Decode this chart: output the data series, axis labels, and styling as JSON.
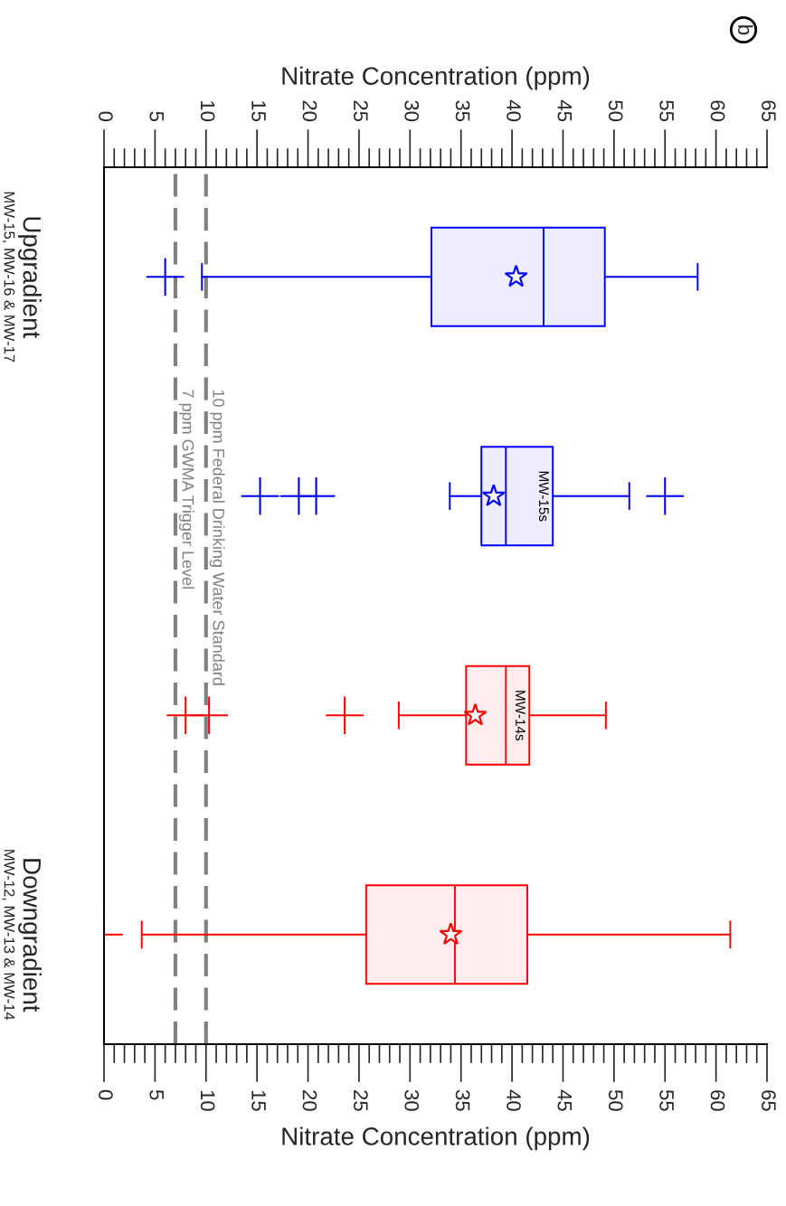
{
  "chart_data": {
    "type": "box",
    "orientation": "horizontal",
    "categories": [
      "Upgradient\nMW-15, MW-16 & MW-17",
      null,
      null,
      "Downgradient\nMW-12, MW-13 & MW-14"
    ],
    "series": [
      {
        "color": "#0000ff",
        "boxes": [
          {
            "low": 9.6,
            "q1": 32.1,
            "median": 43.1,
            "q3": 49.1,
            "high": 58.2,
            "mean": 40.4,
            "outliers": [
              6.0
            ]
          },
          {
            "low": 33.9,
            "q1": 37.0,
            "median": 39.4,
            "q3": 44.0,
            "high": 51.5,
            "mean": 38.2,
            "outliers": [
              15.3,
              19.1,
              20.8,
              55.0
            ]
          },
          null,
          null
        ]
      },
      {
        "color": "#ff0000",
        "boxes": [
          null,
          null,
          {
            "low": 28.9,
            "q1": 35.5,
            "median": 39.4,
            "q3": 41.7,
            "high": 49.2,
            "mean": 36.4,
            "outliers": [
              8.0,
              10.3,
              23.6
            ]
          },
          {
            "low": 3.7,
            "q1": 25.7,
            "median": 34.4,
            "q3": 41.5,
            "high": 61.4,
            "mean": 34.0,
            "outliers": [
              0.0
            ]
          }
        ]
      }
    ],
    "xlabel": "Nitrate Concentration (ppm)",
    "x2label": "Nitrate Concentration (ppm)",
    "xlim": [
      0,
      65
    ],
    "xticks": [
      0,
      5,
      10,
      15,
      20,
      25,
      30,
      35,
      40,
      45,
      50,
      55,
      60,
      65
    ],
    "x2lim": [
      0,
      65
    ],
    "x2ticks": [
      0,
      5,
      10,
      15,
      20,
      25,
      30,
      35,
      40,
      45,
      50,
      55,
      60,
      65
    ],
    "ref_lines": [
      {
        "axis": "x",
        "value": 10,
        "label": "10 ppm Federal Drinking Water Standard",
        "color": "#808080",
        "line_style": "dashed"
      },
      {
        "axis": "x",
        "value": 7,
        "label": "7 ppm GWMA Trigger Level",
        "color": "#808080",
        "line_style": "dashed"
      }
    ],
    "annotations": [
      "b",
      "MW-15s",
      "MW-14s"
    ],
    "grid": false
  }
}
